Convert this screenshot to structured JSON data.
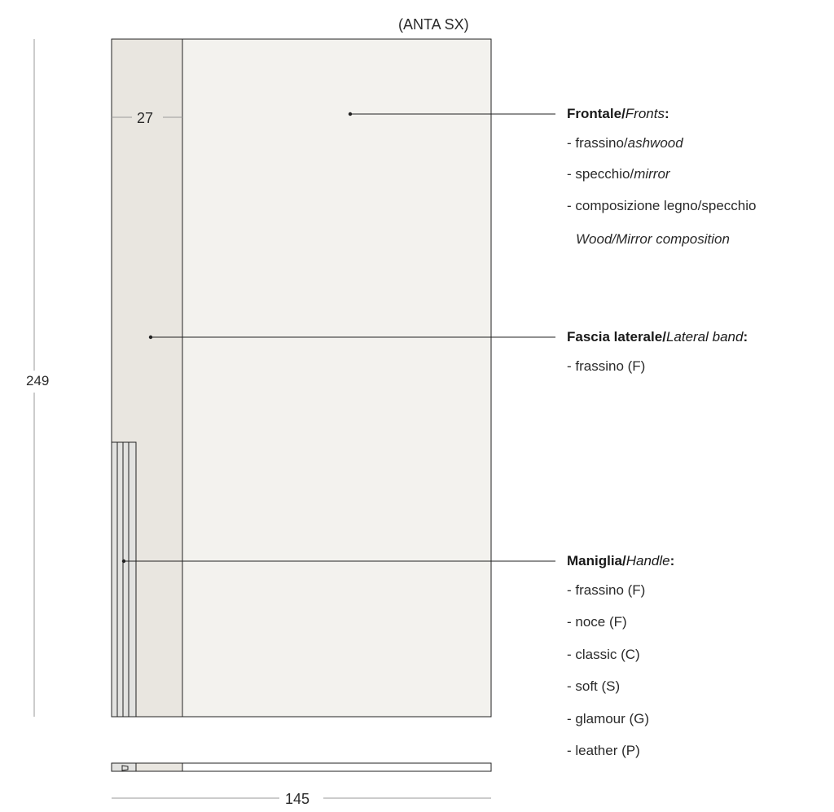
{
  "title": "(ANTA SX)",
  "dimensions": {
    "height": "249",
    "width": "145",
    "band_width": "27"
  },
  "callouts": {
    "fronts": {
      "label_it": "Frontale",
      "sep": "/",
      "label_en": "Fronts",
      "colon": ":",
      "items": [
        {
          "it": "- frassino/",
          "en": "ashwood"
        },
        {
          "it": "- specchio/",
          "en": "mirror"
        },
        {
          "it": "- composizione legno/specchio",
          "en": ""
        },
        {
          "it": "",
          "en": "Wood/Mirror composition"
        }
      ]
    },
    "lateral_band": {
      "label_it": "Fascia laterale",
      "sep": "/",
      "label_en": "Lateral band",
      "colon": ":",
      "items": [
        "- frassino (F)"
      ]
    },
    "handle": {
      "label_it": "Maniglia",
      "sep": "/",
      "label_en": "Handle",
      "colon": ":",
      "items": [
        "- frassino (F)",
        "- noce (F)",
        "- classic (C)",
        "- soft (S)",
        "- glamour (G)",
        "- leather (P)"
      ]
    }
  },
  "colors": {
    "panel": "#f3f2ee",
    "band": "#e9e6e0",
    "handle": "#e2e2e0",
    "stroke": "#222222",
    "dim_line": "#9a9a9a"
  }
}
